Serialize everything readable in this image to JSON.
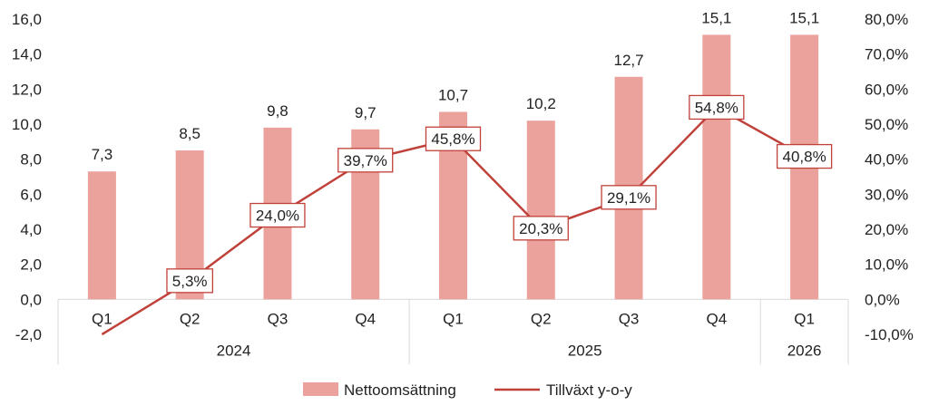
{
  "chart_data": {
    "type": "bar+line",
    "categories": [
      "Q1",
      "Q2",
      "Q3",
      "Q4",
      "Q1",
      "Q2",
      "Q3",
      "Q4",
      "Q1"
    ],
    "groups": [
      {
        "label": "2024",
        "count": 4
      },
      {
        "label": "2025",
        "count": 4
      },
      {
        "label": "2026",
        "count": 1
      }
    ],
    "series": [
      {
        "name": "Nettoomsättning",
        "type": "bar",
        "axis": "left",
        "color": "#eba29c",
        "values": [
          7.3,
          8.5,
          9.8,
          9.7,
          10.7,
          10.2,
          12.7,
          15.1,
          15.1
        ],
        "labels": [
          "7,3",
          "8,5",
          "9,8",
          "9,7",
          "10,7",
          "10,2",
          "12,7",
          "15,1",
          "15,1"
        ]
      },
      {
        "name": "Tillväxt y-o-y",
        "type": "line",
        "axis": "right",
        "color": "#c0413a",
        "values": [
          -10.0,
          5.3,
          24.0,
          39.7,
          45.8,
          20.3,
          29.1,
          54.8,
          40.8
        ],
        "labels": [
          "",
          "5,3%",
          "24,0%",
          "39,7%",
          "45,8%",
          "20,3%",
          "29,1%",
          "54,8%",
          "40,8%"
        ]
      }
    ],
    "y_left": {
      "min": -2,
      "max": 16,
      "step": 2,
      "tick_labels": [
        "-2,0",
        "0,0",
        "2,0",
        "4,0",
        "6,0",
        "8,0",
        "10,0",
        "12,0",
        "14,0",
        "16,0"
      ]
    },
    "y_right": {
      "min": -10,
      "max": 80,
      "step": 10,
      "tick_labels": [
        "-10,0%",
        "0,0%",
        "10,0%",
        "20,0%",
        "30,0%",
        "40,0%",
        "50,0%",
        "60,0%",
        "70,0%",
        "80,0%"
      ]
    },
    "grid": false,
    "legend": "bottom-center"
  }
}
